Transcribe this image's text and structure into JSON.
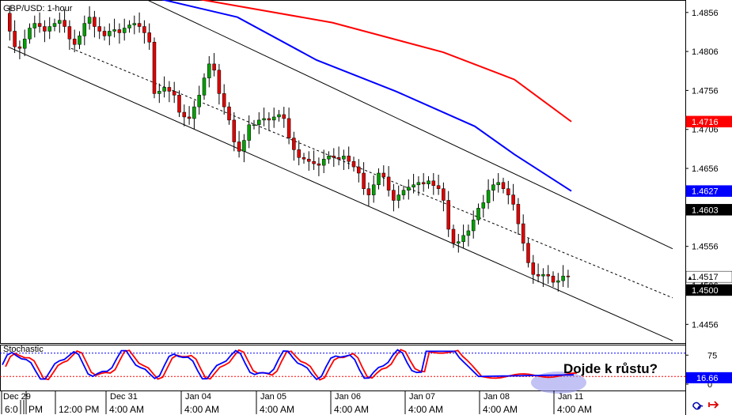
{
  "chart_data": {
    "type": "candlestick",
    "title": "GBP/USD: 1-hour",
    "indicator_title": "Stochastic",
    "annotation": "Dojde k růstu?",
    "colors": {
      "up_candle": "#00a000",
      "down_candle": "#e00000",
      "ma_fast": "#0000ff",
      "ma_slow": "#ff0000",
      "channel": "#000000",
      "stoch_k": "#0000ff",
      "stoch_d": "#ff0000",
      "stoch_level_high": "#0000ff",
      "stoch_level_low": "#ff0000",
      "highlight": "#9999ee",
      "grid": "#d0d0d0"
    },
    "price_axis": {
      "ylim": [
        1.4432,
        1.4872
      ],
      "ticks": [
        "1.4856",
        "1.4806",
        "1.4756",
        "1.4706",
        "1.4656",
        "1.4606",
        "1.4556",
        "1.4506",
        "1.4456"
      ]
    },
    "price_labels": [
      {
        "text": "1.4716",
        "value": 1.4716,
        "bg": "#ff0000",
        "fg": "#ffffff"
      },
      {
        "text": "1.4627",
        "value": 1.4627,
        "bg": "#0000ff",
        "fg": "#ffffff"
      },
      {
        "text": "1.4603",
        "value": 1.4603,
        "bg": "#000000",
        "fg": "#ffffff"
      },
      {
        "text": "1.4517",
        "value": 1.4517,
        "bg": "#ffffff",
        "fg": "#000000",
        "marker": "▲"
      },
      {
        "text": "1.4500",
        "value": 1.45,
        "bg": "#000000",
        "fg": "#ffffff"
      }
    ],
    "stoch_axis": {
      "ylim": [
        0,
        100
      ],
      "ticks": [
        "75",
        "0"
      ],
      "levels": [
        80,
        20
      ],
      "current_label": "16.66",
      "current_value": 16.66
    },
    "x_axis": {
      "date_labels": [
        "Dec 29",
        "Dec 31",
        "Jan 04",
        "Jan 05",
        "Jan 06",
        "Jan 07",
        "Jan 08",
        "Jan 11"
      ],
      "time_labels": [
        "6:0",
        "PM",
        "12:00 PM",
        "4:00 AM",
        "4:00 AM",
        "4:00 AM",
        "4:00 AM",
        "4:00 AM",
        "4:00 AM",
        "4:00 AM"
      ]
    },
    "ohlc_trend": [
      1.4855,
      1.4832,
      1.4812,
      1.481,
      1.4822,
      1.4836,
      1.4842,
      1.4838,
      1.4832,
      1.4838,
      1.4842,
      1.4846,
      1.4838,
      1.4822,
      1.4815,
      1.4826,
      1.4842,
      1.485,
      1.4838,
      1.4832,
      1.4826,
      1.4832,
      1.4834,
      1.483,
      1.4836,
      1.484,
      1.4842,
      1.4838,
      1.483,
      1.4818,
      1.4752,
      1.4755,
      1.476,
      1.4755,
      1.475,
      1.4728,
      1.4722,
      1.472,
      1.4735,
      1.475,
      1.4772,
      1.479,
      1.4782,
      1.4752,
      1.4735,
      1.4718,
      1.469,
      1.4678,
      1.4692,
      1.4712,
      1.4712,
      1.4718,
      1.472,
      1.4718,
      1.4722,
      1.4725,
      1.472,
      1.4695,
      1.468,
      1.467,
      1.4668,
      1.4665,
      1.4662,
      1.466,
      1.4668,
      1.4672,
      1.467,
      1.4668,
      1.4672,
      1.4665,
      1.4658,
      1.465,
      1.463,
      1.4622,
      1.4635,
      1.465,
      1.4645,
      1.4628,
      1.4615,
      1.4622,
      1.4628,
      1.4632,
      1.4635,
      1.4638,
      1.4636,
      1.464,
      1.4634,
      1.463,
      1.4615,
      1.4578,
      1.456,
      1.4562,
      1.457,
      1.4576,
      1.459,
      1.4605,
      1.4612,
      1.4628,
      1.4635,
      1.4638,
      1.463,
      1.4622,
      1.461,
      1.4585,
      1.456,
      1.4535,
      1.452,
      1.4518,
      1.452,
      1.4518,
      1.451,
      1.4512,
      1.4518,
      1.4517
    ],
    "ma_fast": [
      [
        195,
        1.4875
      ],
      [
        300,
        1.485
      ],
      [
        400,
        1.4795
      ],
      [
        500,
        1.4755
      ],
      [
        600,
        1.471
      ],
      [
        650,
        1.4674
      ],
      [
        722,
        1.4627
      ]
    ],
    "ma_slow": [
      [
        240,
        1.4875
      ],
      [
        420,
        1.4843
      ],
      [
        560,
        1.4805
      ],
      [
        650,
        1.477
      ],
      [
        722,
        1.4716
      ]
    ],
    "channel_upper": [
      [
        180,
        1.4875
      ],
      [
        850,
        1.4553
      ]
    ],
    "channel_mid": [
      [
        90,
        1.481
      ],
      [
        850,
        1.449
      ]
    ],
    "channel_lower": [
      [
        10,
        1.4812
      ],
      [
        850,
        1.4435
      ]
    ]
  }
}
